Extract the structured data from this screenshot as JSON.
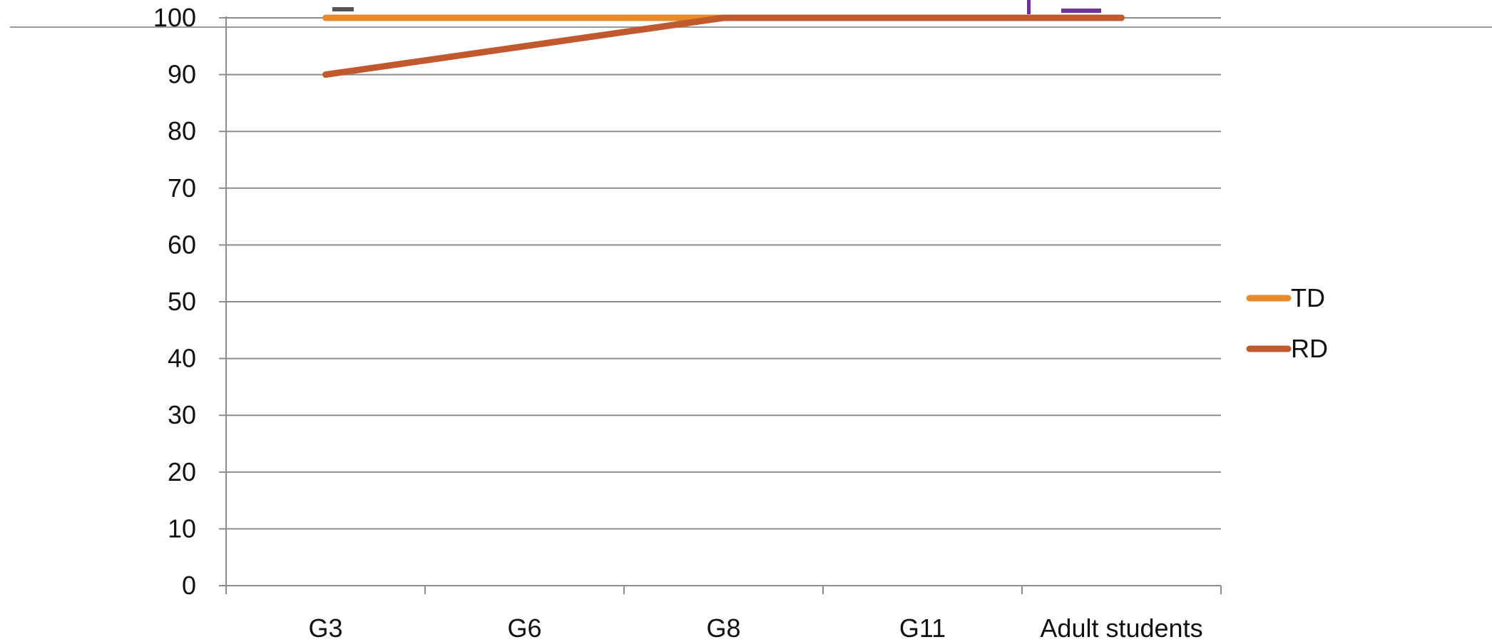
{
  "chart_data": {
    "type": "line",
    "categories": [
      "G3",
      "G6",
      "G8",
      "G11",
      "Adult students"
    ],
    "series": [
      {
        "name": "TD",
        "values": [
          100,
          100,
          100,
          100,
          100
        ],
        "color": "#E8892A"
      },
      {
        "name": "RD",
        "values": [
          90,
          95,
          100,
          100,
          100
        ],
        "color": "#C05A2E"
      }
    ],
    "ylim": [
      0,
      100
    ],
    "y_ticks": [
      0,
      10,
      20,
      30,
      40,
      50,
      60,
      70,
      80,
      90,
      100
    ],
    "grid": true,
    "legend_position": "right"
  }
}
